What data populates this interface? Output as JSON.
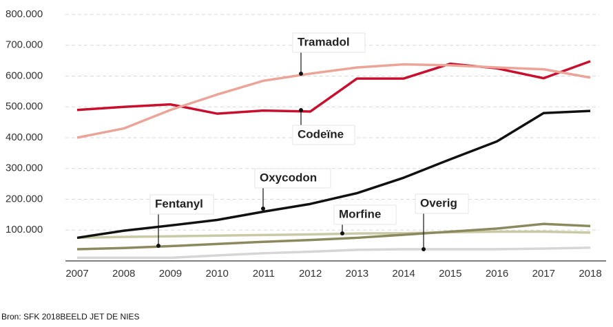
{
  "chart_data": {
    "type": "line",
    "categories": [
      "2007",
      "2008",
      "2009",
      "2010",
      "2011",
      "2012",
      "2013",
      "2014",
      "2015",
      "2016",
      "2017",
      "2018"
    ],
    "series": [
      {
        "name": "Tramadol",
        "color": "#eba497",
        "values": [
          400000,
          430000,
          490000,
          540000,
          585000,
          608000,
          628000,
          638000,
          635000,
          628000,
          622000,
          595000
        ]
      },
      {
        "name": "Codeïne",
        "color": "#c8102e",
        "values": [
          490000,
          500000,
          508000,
          478000,
          488000,
          485000,
          592000,
          592000,
          640000,
          625000,
          593000,
          648000
        ]
      },
      {
        "name": "Oxycodon",
        "color": "#111111",
        "values": [
          75000,
          98000,
          115000,
          133000,
          160000,
          185000,
          220000,
          270000,
          330000,
          388000,
          480000,
          487000
        ]
      },
      {
        "name": "Fentanyl",
        "color": "#8b8a5e",
        "values": [
          38000,
          42000,
          48000,
          55000,
          62000,
          68000,
          75000,
          85000,
          95000,
          105000,
          120000,
          113000
        ]
      },
      {
        "name": "Morfine",
        "color": "#c9c9a6",
        "values": [
          75000,
          78000,
          80000,
          82000,
          84000,
          86000,
          89000,
          90000,
          93000,
          95000,
          95000,
          92000
        ]
      },
      {
        "name": "Overig",
        "color": "#d6d6d6",
        "values": [
          10000,
          10000,
          10000,
          18000,
          25000,
          30000,
          36000,
          38000,
          38000,
          38000,
          40000,
          43000
        ]
      }
    ],
    "ylim": [
      0,
      800000
    ],
    "yticks": [
      {
        "value": 100000,
        "label": "100.000"
      },
      {
        "value": 200000,
        "label": "200.000"
      },
      {
        "value": 300000,
        "label": "300.000"
      },
      {
        "value": 400000,
        "label": "400.000"
      },
      {
        "value": 500000,
        "label": "500.000"
      },
      {
        "value": 600000,
        "label": "600.000"
      },
      {
        "value": 700000,
        "label": "700.000"
      },
      {
        "value": 800000,
        "label": "800.000"
      }
    ],
    "grid": true,
    "source": "Bron: SFK 2018BEELD JET DE NIES"
  }
}
